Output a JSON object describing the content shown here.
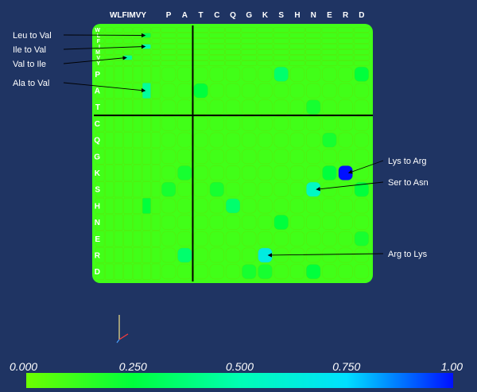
{
  "chart_data": {
    "type": "heatmap",
    "col_labels": [
      "W",
      "L",
      "F",
      "I",
      "M",
      "V",
      "Y",
      "P",
      "A",
      "T",
      "C",
      "Q",
      "G",
      "K",
      "S",
      "H",
      "N",
      "E",
      "R",
      "D"
    ],
    "row_labels": [
      "W",
      "L",
      "F",
      "I",
      "M",
      "V",
      "Y",
      "P",
      "A",
      "T",
      "C",
      "Q",
      "G",
      "K",
      "S",
      "H",
      "N",
      "E",
      "R",
      "D"
    ],
    "col_header_text": [
      "WLFIMVY",
      "P",
      "A",
      "T",
      "C",
      "Q",
      "G",
      "K",
      "S",
      "H",
      "N",
      "E",
      "R",
      "D"
    ],
    "baseline_value": 0.1,
    "cells": [
      {
        "row": "I",
        "col": "V",
        "value": 0.5
      },
      {
        "row": "L",
        "col": "V",
        "value": 0.3
      },
      {
        "row": "V",
        "col": "I",
        "value": 0.45
      },
      {
        "row": "A",
        "col": "V",
        "value": 0.45
      },
      {
        "row": "P",
        "col": "S",
        "value": 0.35
      },
      {
        "row": "A",
        "col": "T",
        "value": 0.25
      },
      {
        "row": "K",
        "col": "R",
        "value": 1.0
      },
      {
        "row": "S",
        "col": "N",
        "value": 0.55
      },
      {
        "row": "R",
        "col": "K",
        "value": 0.65
      },
      {
        "row": "H",
        "col": "Q",
        "value": 0.35
      },
      {
        "row": "R",
        "col": "A",
        "value": 0.35
      },
      {
        "row": "P",
        "col": "D",
        "value": 0.25
      },
      {
        "row": "K",
        "col": "E",
        "value": 0.25
      },
      {
        "row": "K",
        "col": "A",
        "value": 0.2
      },
      {
        "row": "S",
        "col": "D",
        "value": 0.25
      },
      {
        "row": "S",
        "col": "P",
        "value": 0.2
      },
      {
        "row": "S",
        "col": "C",
        "value": 0.2
      },
      {
        "row": "Q",
        "col": "E",
        "value": 0.2
      },
      {
        "row": "N",
        "col": "S",
        "value": 0.25
      },
      {
        "row": "D",
        "col": "N",
        "value": 0.25
      },
      {
        "row": "D",
        "col": "G",
        "value": 0.2
      },
      {
        "row": "D",
        "col": "K",
        "value": 0.2
      },
      {
        "row": "H",
        "col": "V",
        "value": 0.25
      },
      {
        "row": "E",
        "col": "D",
        "value": 0.2
      },
      {
        "row": "T",
        "col": "N",
        "value": 0.2
      }
    ],
    "annotations": [
      {
        "text": "Leu to Val",
        "row": "L",
        "col": "V"
      },
      {
        "text": "Ile to Val",
        "row": "I",
        "col": "V"
      },
      {
        "text": "Val to Ile",
        "row": "V",
        "col": "I"
      },
      {
        "text": "Ala to Val",
        "row": "A",
        "col": "V"
      },
      {
        "text": "Lys to Arg",
        "row": "K",
        "col": "R"
      },
      {
        "text": "Ser to Asn",
        "row": "S",
        "col": "N"
      },
      {
        "text": "Arg to Lys",
        "row": "R",
        "col": "K"
      }
    ],
    "colorbar": {
      "min": 0.0,
      "max": 1.0,
      "tick_labels": [
        "0.000",
        "0.250",
        "0.500",
        "0.750",
        "1.00"
      ],
      "stops": [
        {
          "v": 0.0,
          "color": "#6dff00"
        },
        {
          "v": 0.25,
          "color": "#00ff3c"
        },
        {
          "v": 0.5,
          "color": "#00ffb4"
        },
        {
          "v": 0.75,
          "color": "#00e0ff"
        },
        {
          "v": 1.0,
          "color": "#0010ff"
        }
      ]
    },
    "divider_after": {
      "col": "A",
      "row": "T"
    }
  },
  "colors": {
    "background": "#1f3463",
    "divider": "#000000",
    "label": "#ffffff",
    "annotation_bg": "#1f3463",
    "axis_x": "#ff3b3b",
    "axis_y": "#f2e28a",
    "axis_z": "#4aa3ff"
  }
}
